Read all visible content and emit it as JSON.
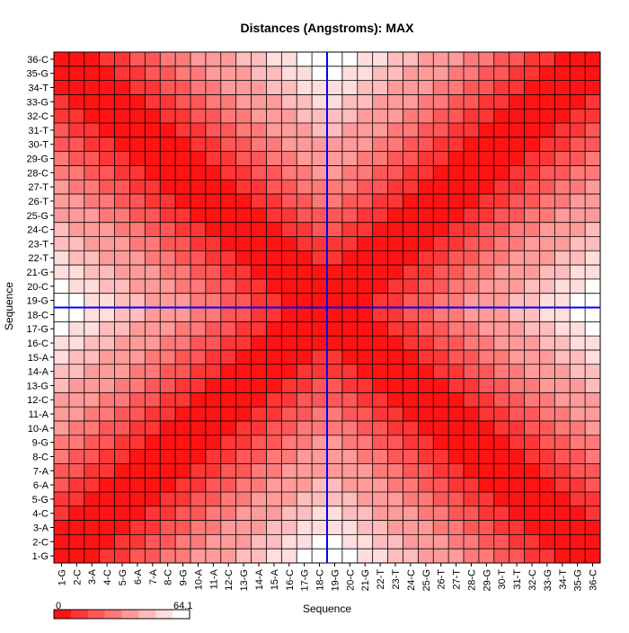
{
  "chart_data": {
    "type": "heatmap",
    "title": "Distances (Angstroms):  MAX",
    "xlabel": "Sequence",
    "ylabel": "Sequence",
    "labels": [
      "1-G",
      "2-C",
      "3-A",
      "4-C",
      "5-G",
      "6-A",
      "7-A",
      "8-C",
      "9-G",
      "10-A",
      "11-A",
      "12-C",
      "13-G",
      "14-A",
      "15-A",
      "16-C",
      "17-G",
      "18-C",
      "19-G",
      "20-C",
      "21-G",
      "22-T",
      "23-T",
      "24-C",
      "25-G",
      "26-T",
      "27-T",
      "28-C",
      "29-G",
      "30-T",
      "31-T",
      "32-C",
      "33-G",
      "34-T",
      "35-G",
      "36-C"
    ],
    "color_scale": {
      "min": 0,
      "max": 64.1,
      "min_label": "0",
      "max_label": "64.1",
      "low_color": "#ff0000",
      "high_color": "#ffffff",
      "steps": 8
    },
    "values_rule": "strand_distance",
    "strand_split": 18,
    "grid": true,
    "crosshair": {
      "x_after": "18-C",
      "y_after": "18-C",
      "color": "#0000ff"
    }
  }
}
